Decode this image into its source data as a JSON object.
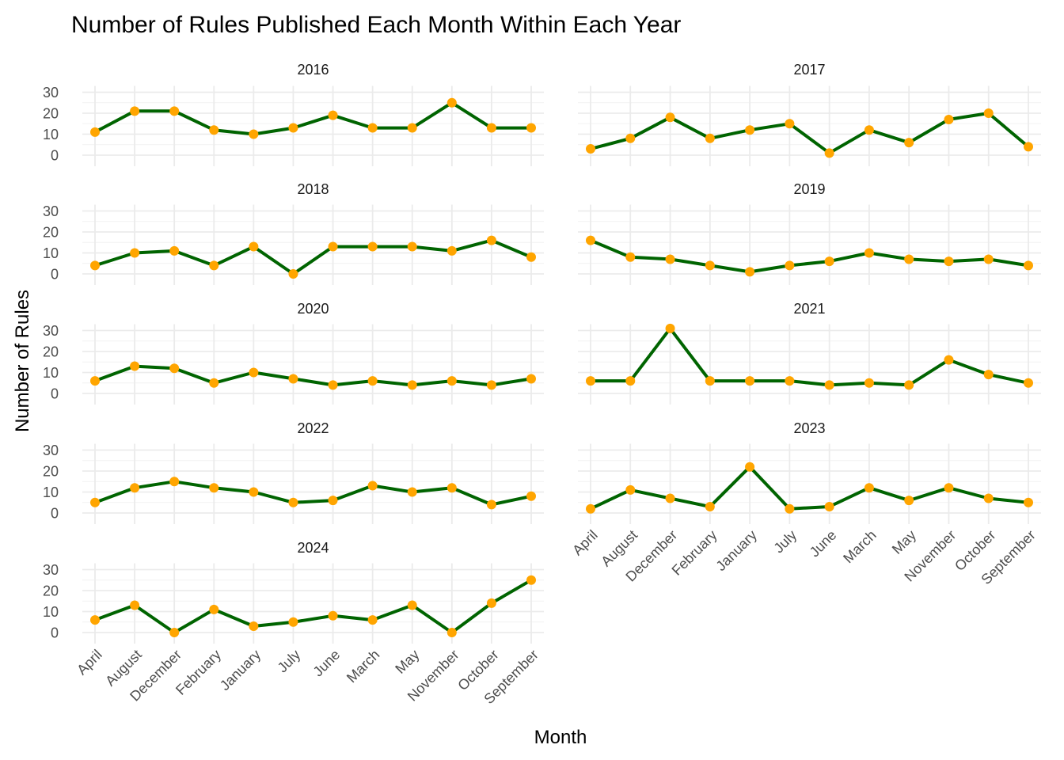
{
  "chart_data": {
    "type": "line",
    "title": "Number of Rules Published Each Month Within Each Year",
    "xlabel": "Month",
    "ylabel": "Number of Rules",
    "categories": [
      "April",
      "August",
      "December",
      "February",
      "January",
      "July",
      "June",
      "March",
      "May",
      "November",
      "October",
      "September"
    ],
    "ylim": [
      0,
      30
    ],
    "yticks": [
      "0",
      "10",
      "20",
      "30"
    ],
    "grid": true,
    "line_color": "#006400",
    "point_color": "#ffa500",
    "panels": [
      {
        "label": "2016",
        "values": [
          11,
          21,
          21,
          12,
          10,
          13,
          19,
          13,
          13,
          25,
          13,
          13
        ]
      },
      {
        "label": "2017",
        "values": [
          3,
          8,
          18,
          8,
          12,
          15,
          1,
          12,
          6,
          17,
          20,
          4
        ]
      },
      {
        "label": "2018",
        "values": [
          4,
          10,
          11,
          4,
          13,
          0,
          13,
          13,
          13,
          11,
          16,
          8
        ]
      },
      {
        "label": "2019",
        "values": [
          16,
          8,
          7,
          4,
          1,
          4,
          6,
          10,
          7,
          6,
          7,
          4
        ]
      },
      {
        "label": "2020",
        "values": [
          6,
          13,
          12,
          5,
          10,
          7,
          4,
          6,
          4,
          6,
          4,
          7
        ]
      },
      {
        "label": "2021",
        "values": [
          6,
          6,
          31,
          6,
          6,
          6,
          4,
          5,
          4,
          16,
          9,
          5
        ]
      },
      {
        "label": "2022",
        "values": [
          5,
          12,
          15,
          12,
          10,
          5,
          6,
          13,
          10,
          12,
          4,
          8
        ]
      },
      {
        "label": "2023",
        "values": [
          2,
          11,
          7,
          3,
          22,
          2,
          3,
          12,
          6,
          12,
          7,
          5
        ]
      },
      {
        "label": "2024",
        "values": [
          6,
          13,
          0,
          11,
          3,
          5,
          8,
          6,
          13,
          0,
          14,
          25
        ]
      }
    ]
  }
}
